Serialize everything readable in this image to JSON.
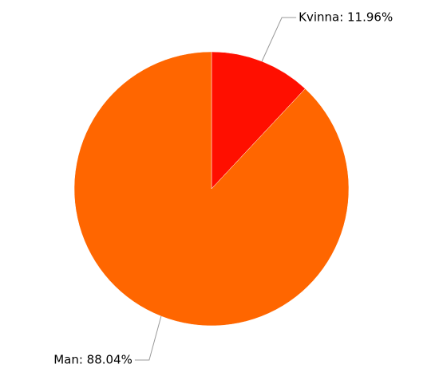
{
  "chart_data": {
    "type": "pie",
    "values": [
      11.96,
      88.04
    ],
    "value_labels": [
      "Kvinna: 11.96%",
      "Man: 88.04%"
    ],
    "colors": [
      "#ff0f00",
      "#ff6600"
    ]
  }
}
